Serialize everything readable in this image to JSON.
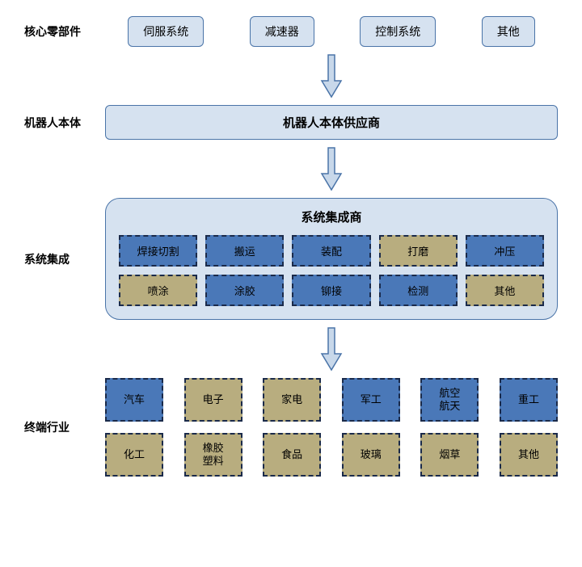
{
  "colors": {
    "light_box_bg": "#d6e2f0",
    "light_box_border": "#4a74a8",
    "cell_blue": "#4a78b8",
    "cell_tan": "#b8ad7f",
    "dash_border": "#1a2a4a",
    "arrow_fill": "#c8d8ea",
    "arrow_stroke": "#4a74a8",
    "background": "#ffffff"
  },
  "layers": {
    "l1": {
      "label": "核心零部件",
      "items": [
        "伺服系统",
        "减速器",
        "控制系统",
        "其他"
      ]
    },
    "l2": {
      "label": "机器人本体",
      "title": "机器人本体供应商"
    },
    "l3": {
      "label": "系统集成",
      "title": "系统集成商",
      "row1": [
        {
          "t": "焊接切割",
          "c": "blue"
        },
        {
          "t": "搬运",
          "c": "blue"
        },
        {
          "t": "装配",
          "c": "blue"
        },
        {
          "t": "打磨",
          "c": "tan"
        },
        {
          "t": "冲压",
          "c": "blue"
        }
      ],
      "row2": [
        {
          "t": "喷涂",
          "c": "tan"
        },
        {
          "t": "涂胶",
          "c": "blue"
        },
        {
          "t": "铆接",
          "c": "blue"
        },
        {
          "t": "检测",
          "c": "blue"
        },
        {
          "t": "其他",
          "c": "tan"
        }
      ]
    },
    "l4": {
      "label": "终端行业",
      "row1": [
        {
          "t": "汽车",
          "c": "blue"
        },
        {
          "t": "电子",
          "c": "tan"
        },
        {
          "t": "家电",
          "c": "tan"
        },
        {
          "t": "军工",
          "c": "blue"
        },
        {
          "t": "航空\n航天",
          "c": "blue"
        },
        {
          "t": "重工",
          "c": "blue"
        }
      ],
      "row2": [
        {
          "t": "化工",
          "c": "tan"
        },
        {
          "t": "橡胶\n塑料",
          "c": "tan"
        },
        {
          "t": "食品",
          "c": "tan"
        },
        {
          "t": "玻璃",
          "c": "tan"
        },
        {
          "t": "烟草",
          "c": "tan"
        },
        {
          "t": "其他",
          "c": "tan"
        }
      ]
    }
  }
}
